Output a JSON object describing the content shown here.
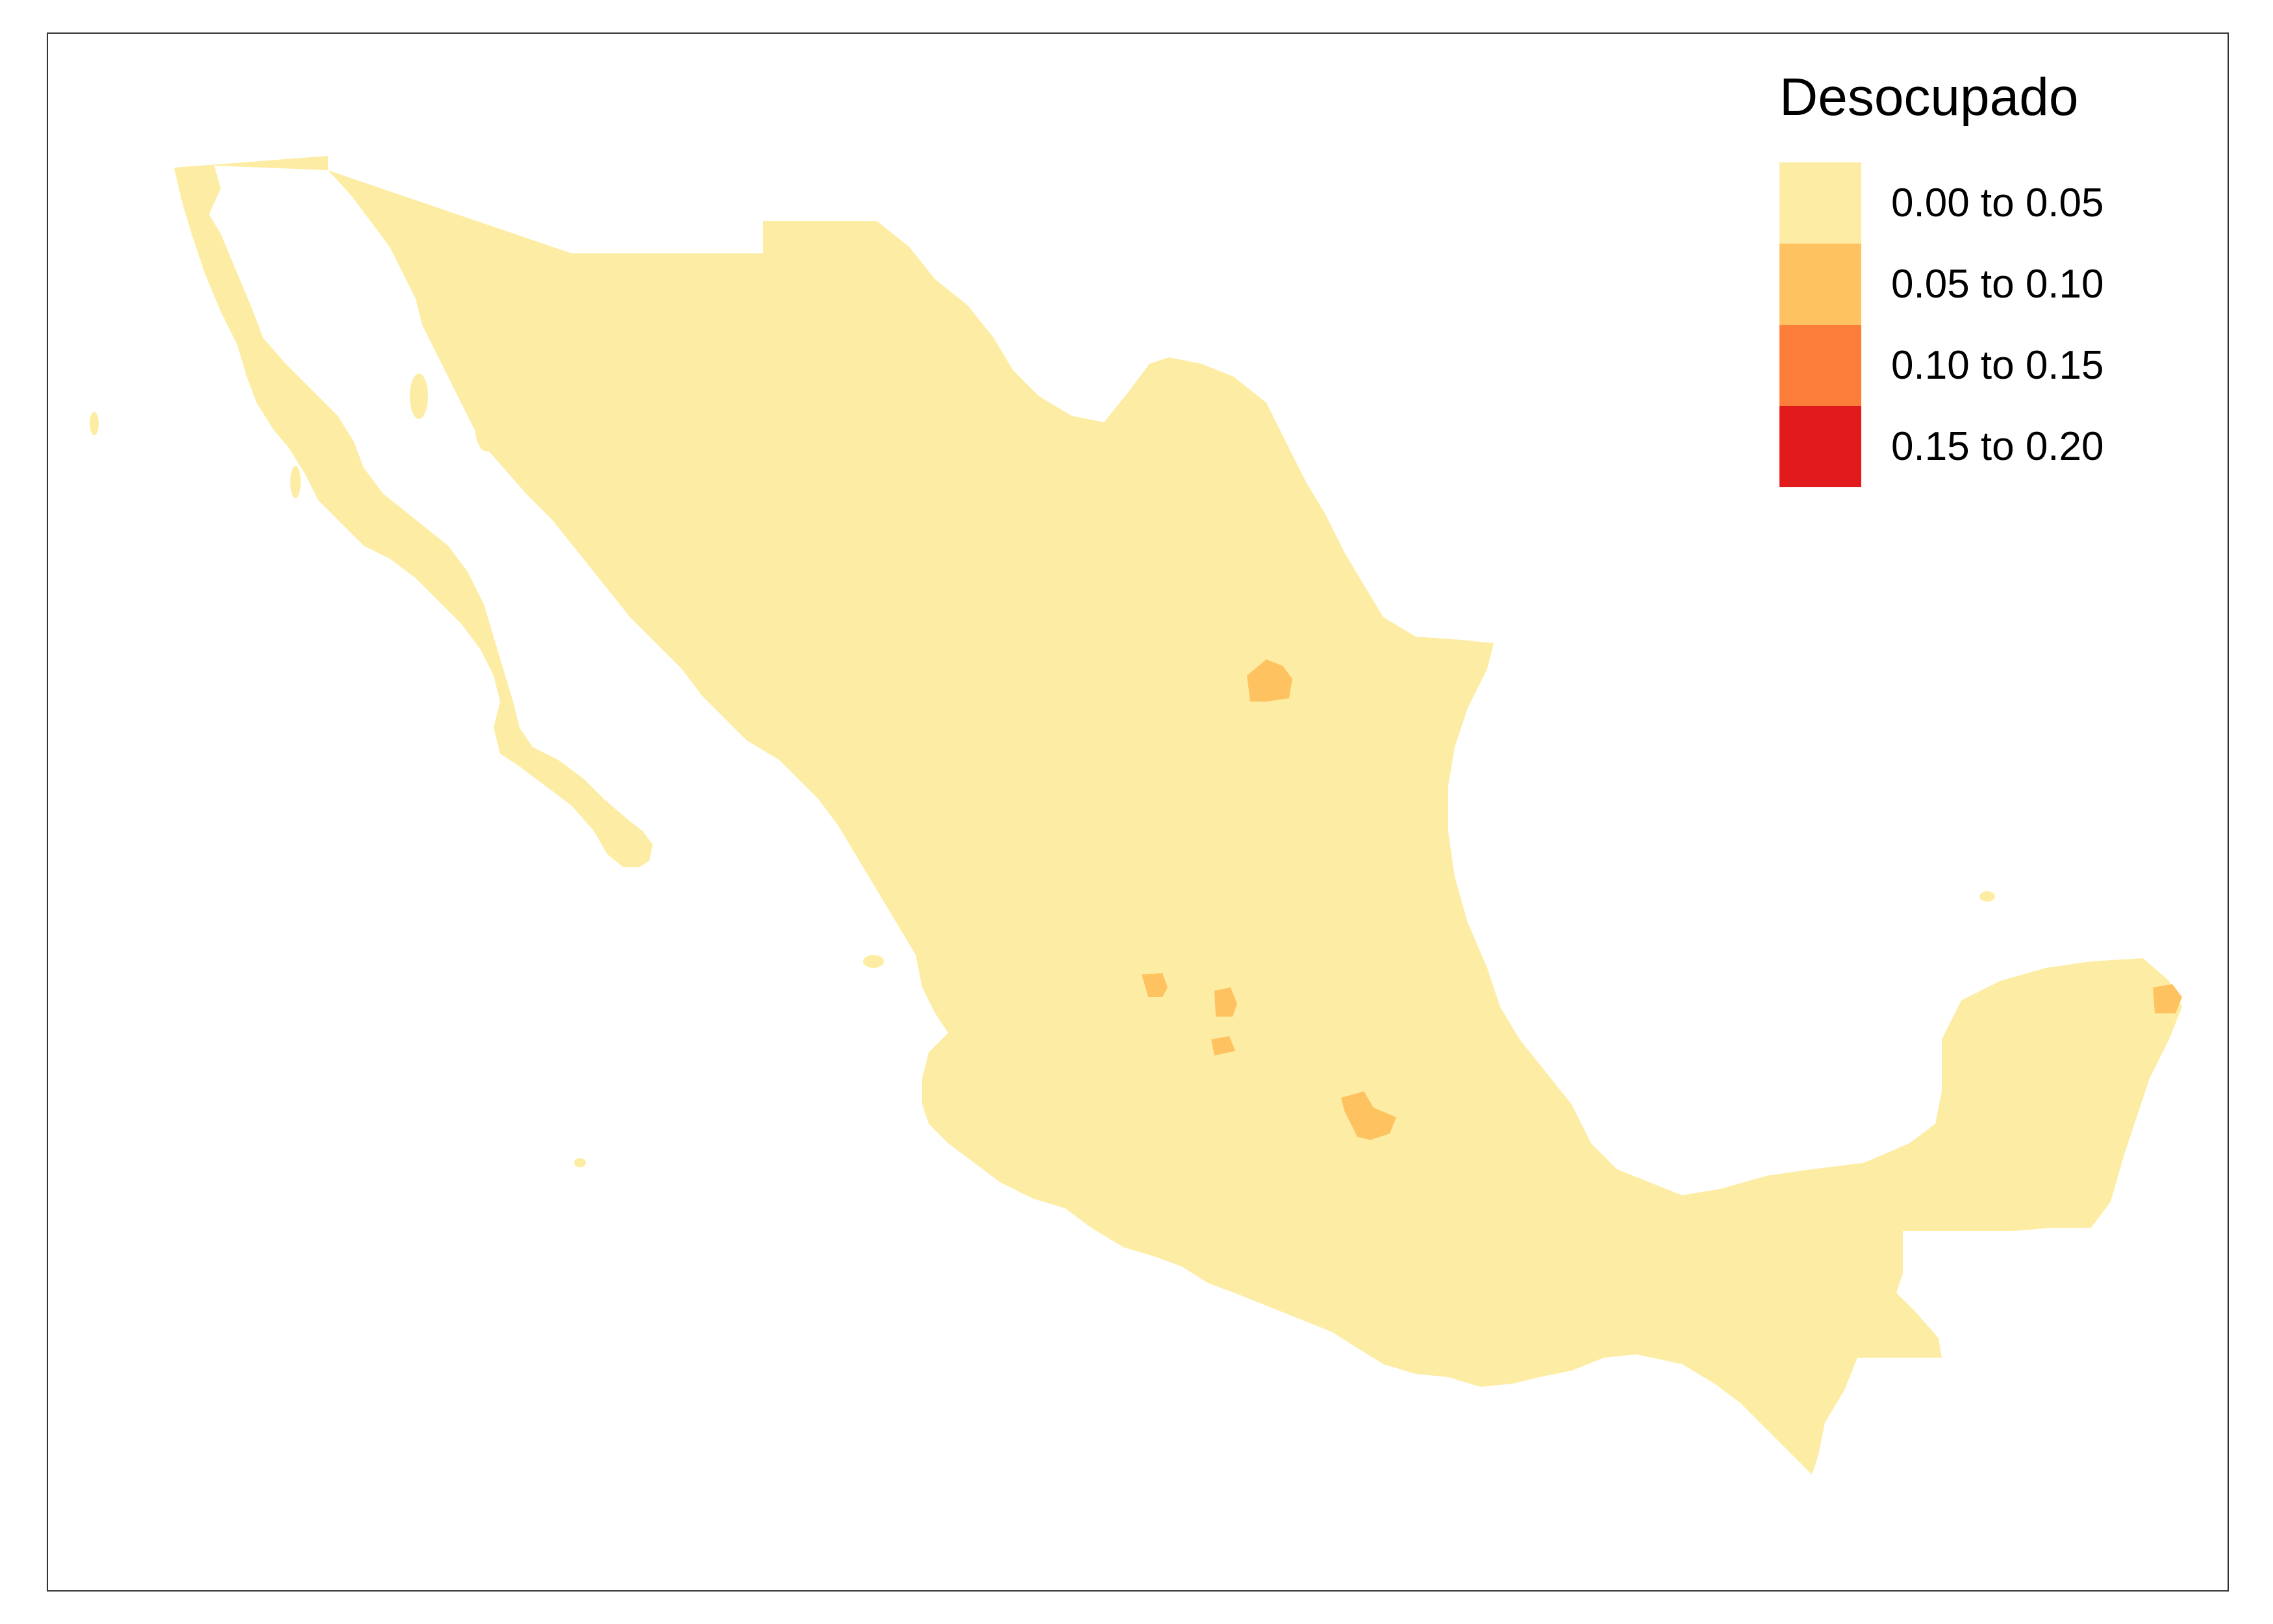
{
  "legend": {
    "title": "Desocupado",
    "items": [
      {
        "label": "0.00 to 0.05",
        "color": "#FDEDA4"
      },
      {
        "label": "0.05 to 0.10",
        "color": "#FEC360"
      },
      {
        "label": "0.10 to 0.15",
        "color": "#FD7D3A"
      },
      {
        "label": "0.15 to 0.20",
        "color": "#E31A1C"
      }
    ]
  },
  "map_colors": {
    "land": "#FDEDA4",
    "highlight": "#FEC360"
  }
}
